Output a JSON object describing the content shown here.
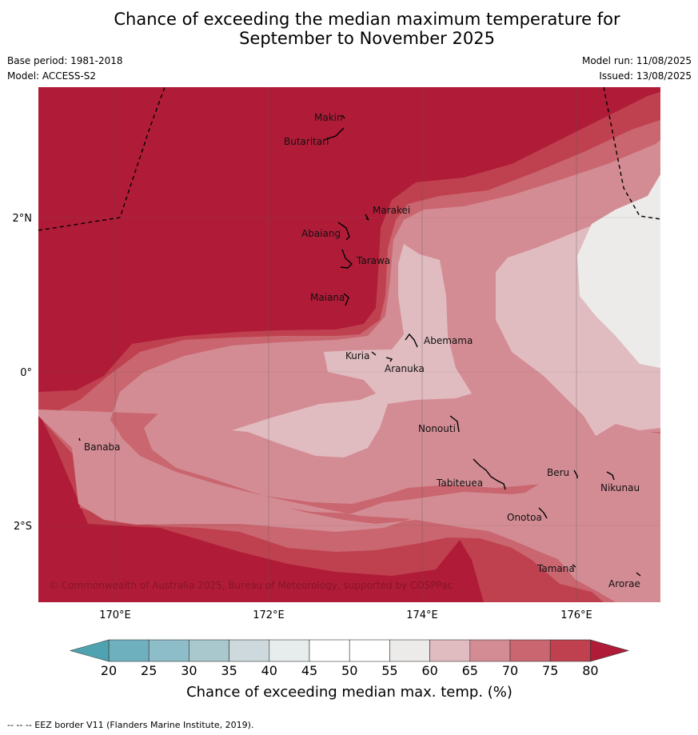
{
  "title_line1": "Chance of exceeding the median maximum temperature for",
  "title_line2": "September to November 2025",
  "base_period": "Base period: 1981-2018",
  "model": "Model: ACCESS-S2",
  "model_run": "Model run: 11/08/2025",
  "issued": "Issued: 13/08/2025",
  "copyright": "© Commonwealth of Australia 2025, Bureau of Meteorology, supported by COSPPac",
  "axes": {
    "x_ticks": [
      "170°E",
      "172°E",
      "174°E",
      "176°E"
    ],
    "y_ticks": [
      "2°N",
      "0°",
      "2°S"
    ]
  },
  "places": [
    {
      "name": "Makin"
    },
    {
      "name": "Butaritari"
    },
    {
      "name": "Marakei"
    },
    {
      "name": "Abaiang"
    },
    {
      "name": "Tarawa"
    },
    {
      "name": "Maiana"
    },
    {
      "name": "Abemama"
    },
    {
      "name": "Kuria"
    },
    {
      "name": "Aranuka"
    },
    {
      "name": "Banaba"
    },
    {
      "name": "Nonouti"
    },
    {
      "name": "Tabiteuea"
    },
    {
      "name": "Beru"
    },
    {
      "name": "Nikunau"
    },
    {
      "name": "Onotoa"
    },
    {
      "name": "Tamana"
    },
    {
      "name": "Arorae"
    }
  ],
  "colorbar": {
    "ticks": [
      "20",
      "25",
      "30",
      "35",
      "40",
      "45",
      "50",
      "55",
      "60",
      "65",
      "70",
      "75",
      "80"
    ],
    "colors": [
      "#6fb0be",
      "#8dbdc8",
      "#a8c8ce",
      "#cdd9dc",
      "#e7eced",
      "#ffffff",
      "#ffffff",
      "#ecebea",
      "#e0bcc0",
      "#d48c94",
      "#c9666f",
      "#bf414f"
    ],
    "low_color": "#4fa3b1",
    "high_color": "#b01c38",
    "label": "Chance of exceeding median max. temp. (%)"
  },
  "map_colors": {
    "p80": "#b01c38",
    "p75": "#bf414f",
    "p70": "#c9666f",
    "p65": "#d48c94",
    "p60": "#e0bcc0",
    "p55": "#ecebea"
  },
  "footer": "--  --  -- EEZ border V11 (Flanders Marine Institute, 2019)."
}
